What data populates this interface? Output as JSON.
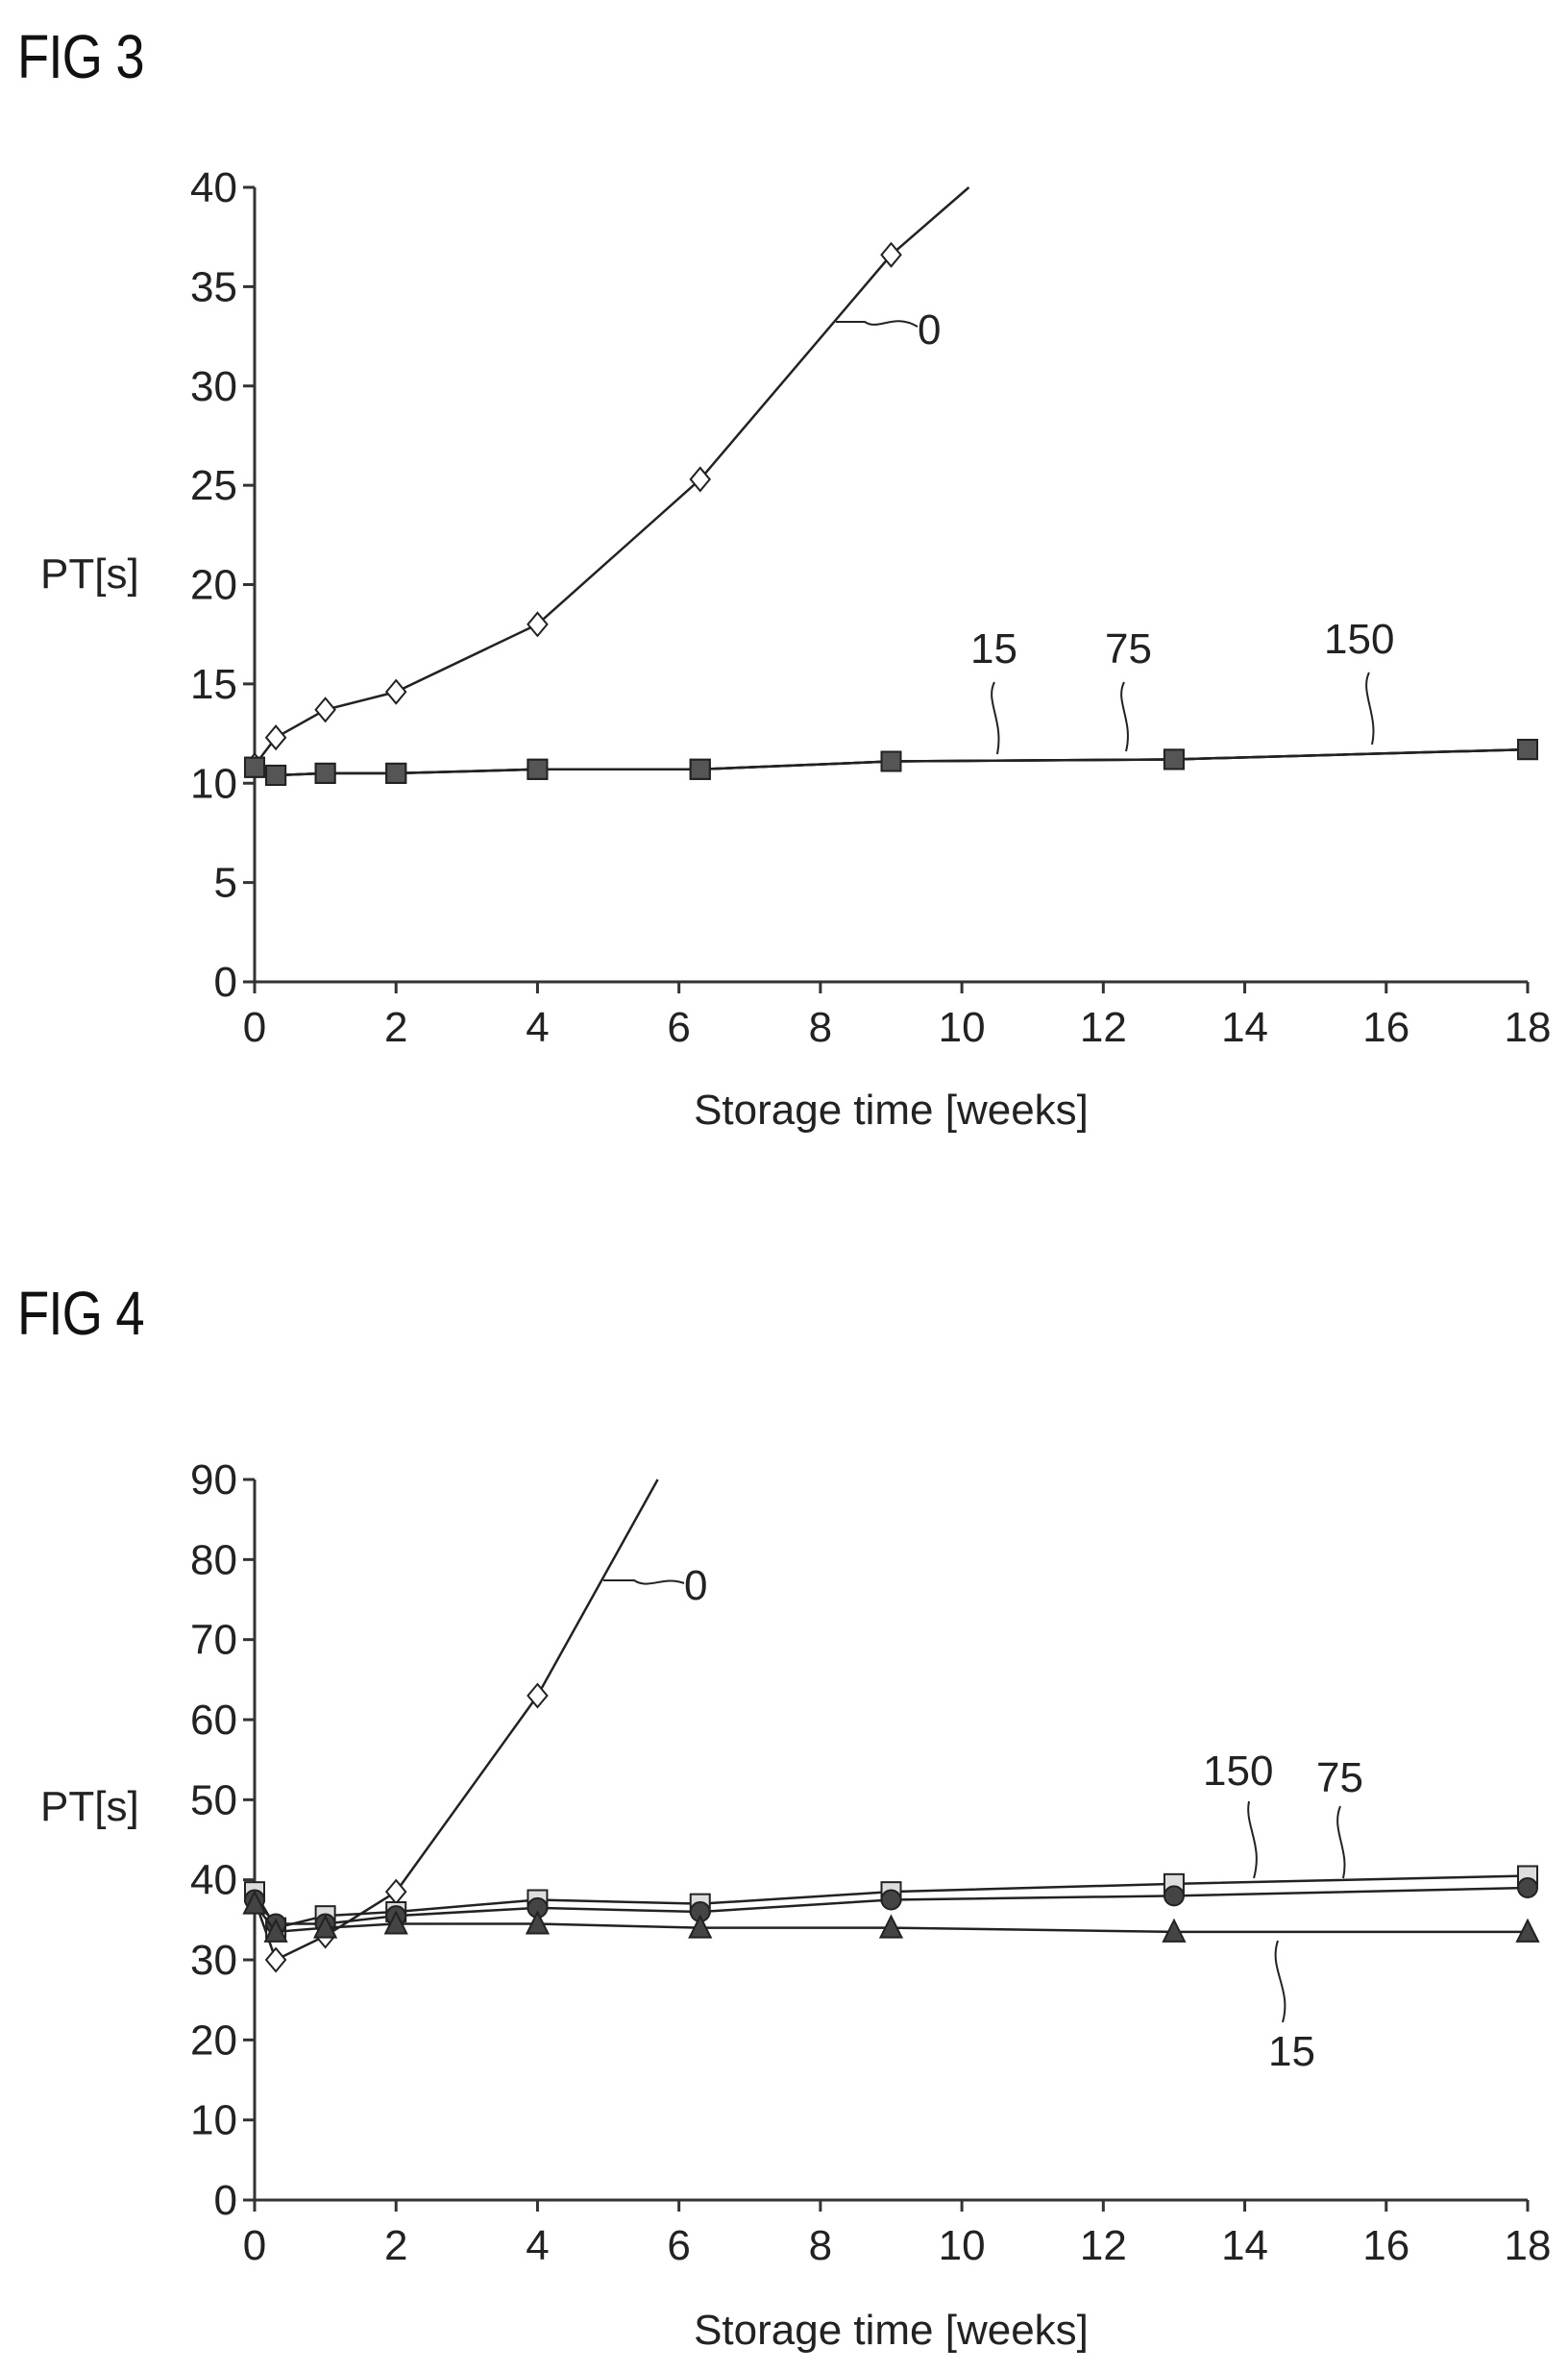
{
  "figures": {
    "fig3_title": "FIG 3",
    "fig4_title": "FIG 4"
  },
  "chart_data": [
    {
      "type": "line",
      "title": "FIG 3",
      "xlabel": "Storage time [weeks]",
      "ylabel": "PT[s]",
      "xlim": [
        0,
        18
      ],
      "ylim": [
        0,
        40
      ],
      "xticks": [
        0,
        2,
        4,
        6,
        8,
        10,
        12,
        14,
        16,
        18
      ],
      "yticks": [
        0,
        5,
        10,
        15,
        20,
        25,
        30,
        35,
        40
      ],
      "grid": false,
      "series": [
        {
          "name": "0",
          "marker": "diamond-open",
          "x": [
            0,
            0.3,
            1,
            2,
            4,
            6.3,
            9
          ],
          "y": [
            10.9,
            12.3,
            13.7,
            14.6,
            18.0,
            25.3,
            36.6
          ],
          "extends_to": [
            10.1,
            40
          ]
        },
        {
          "name": "15",
          "marker": "square-filled",
          "x": [
            0,
            0.3,
            1,
            2,
            4,
            6.3,
            9,
            13,
            18
          ],
          "y": [
            10.8,
            10.4,
            10.5,
            10.5,
            10.7,
            10.7,
            11.1,
            11.2,
            11.7
          ]
        },
        {
          "name": "75",
          "marker": "square-filled",
          "x": [
            0,
            0.3,
            1,
            2,
            4,
            6.3,
            9,
            13,
            18
          ],
          "y": [
            10.8,
            10.4,
            10.5,
            10.5,
            10.7,
            10.7,
            11.1,
            11.2,
            11.7
          ]
        },
        {
          "name": "150",
          "marker": "square-filled",
          "x": [
            0,
            0.3,
            1,
            2,
            4,
            6.3,
            9,
            13,
            18
          ],
          "y": [
            10.8,
            10.4,
            10.5,
            10.5,
            10.7,
            10.7,
            11.1,
            11.2,
            11.7
          ]
        }
      ]
    },
    {
      "type": "line",
      "title": "FIG 4",
      "xlabel": "Storage time [weeks]",
      "ylabel": "PT[s]",
      "xlim": [
        0,
        18
      ],
      "ylim": [
        0,
        90
      ],
      "xticks": [
        0,
        2,
        4,
        6,
        8,
        10,
        12,
        14,
        16,
        18
      ],
      "yticks": [
        0,
        10,
        20,
        30,
        40,
        50,
        60,
        70,
        80,
        90
      ],
      "grid": false,
      "series": [
        {
          "name": "0",
          "marker": "diamond-open",
          "x": [
            0,
            0.3,
            1,
            2,
            4
          ],
          "y": [
            37.5,
            30.0,
            33.0,
            38.5,
            63.0
          ],
          "extends_to": [
            5.7,
            90
          ]
        },
        {
          "name": "150",
          "marker": "square-open",
          "x": [
            0,
            0.3,
            1,
            2,
            4,
            6.3,
            9,
            13,
            18
          ],
          "y": [
            38.5,
            34.0,
            35.5,
            36.0,
            37.5,
            37.0,
            38.5,
            39.5,
            40.5
          ]
        },
        {
          "name": "75",
          "marker": "circle-filled",
          "x": [
            0,
            0.3,
            1,
            2,
            4,
            6.3,
            9,
            13,
            18
          ],
          "y": [
            37.5,
            34.5,
            34.5,
            35.5,
            36.5,
            36.0,
            37.5,
            38.0,
            39.0
          ]
        },
        {
          "name": "15",
          "marker": "triangle-filled",
          "x": [
            0,
            0.3,
            1,
            2,
            4,
            6.3,
            9,
            13,
            18
          ],
          "y": [
            37.0,
            33.5,
            34.0,
            34.5,
            34.5,
            34.0,
            34.0,
            33.5,
            33.5
          ]
        }
      ]
    }
  ]
}
